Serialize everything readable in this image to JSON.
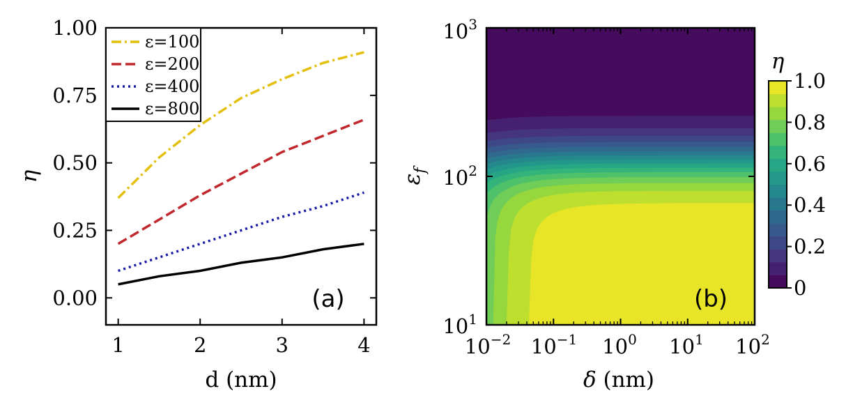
{
  "chart_data": [
    {
      "type": "line",
      "panel_label": "(a)",
      "xlabel": "d (nm)",
      "ylabel": "η",
      "xlim": [
        0.85,
        4.15
      ],
      "ylim": [
        -0.1,
        1.0
      ],
      "x_ticks": [
        1,
        2,
        3,
        4
      ],
      "x_tick_labels": [
        "1",
        "2",
        "3",
        "4"
      ],
      "y_ticks": [
        0.0,
        0.25,
        0.5,
        0.75,
        1.0
      ],
      "y_tick_labels": [
        "0.00",
        "0.25",
        "0.50",
        "0.75",
        "1.00"
      ],
      "legend_position": "top-left",
      "series": [
        {
          "name": "ε=100",
          "color": "#e2c00d",
          "style": "dashdot",
          "x": [
            1,
            1.5,
            2,
            2.5,
            3,
            3.5,
            4
          ],
          "values": [
            0.37,
            0.52,
            0.64,
            0.74,
            0.81,
            0.87,
            0.91
          ]
        },
        {
          "name": "ε=200",
          "color": "#c0282d",
          "style": "dashed",
          "x": [
            1,
            1.5,
            2,
            2.5,
            3,
            3.5,
            4
          ],
          "values": [
            0.2,
            0.29,
            0.38,
            0.46,
            0.54,
            0.6,
            0.66
          ]
        },
        {
          "name": "ε=400",
          "color": "#1a1aa6",
          "style": "dotted",
          "x": [
            1,
            1.5,
            2,
            2.5,
            3,
            3.5,
            4
          ],
          "values": [
            0.1,
            0.15,
            0.2,
            0.25,
            0.3,
            0.34,
            0.39
          ]
        },
        {
          "name": "ε=800",
          "color": "#000000",
          "style": "solid",
          "x": [
            1,
            1.5,
            2,
            2.5,
            3,
            3.5,
            4
          ],
          "values": [
            0.05,
            0.08,
            0.1,
            0.13,
            0.15,
            0.18,
            0.2
          ]
        }
      ]
    },
    {
      "type": "heatmap",
      "panel_label": "(b)",
      "xlabel": "δ (nm)",
      "ylabel": "εf",
      "x_scale": "log",
      "y_scale": "log",
      "xlim": [
        0.01,
        100
      ],
      "ylim": [
        10,
        1000
      ],
      "x_tick_labels": [
        "10−2",
        "10−1",
        "100",
        "101",
        "102"
      ],
      "y_tick_labels": [
        "101",
        "102",
        "103"
      ],
      "colorbar": {
        "label": "η",
        "range": [
          0,
          1
        ],
        "tick_labels": [
          "0",
          "0.2",
          "0.4",
          "0.6",
          "0.8",
          "1.0"
        ],
        "colormap": "viridis"
      }
    }
  ]
}
